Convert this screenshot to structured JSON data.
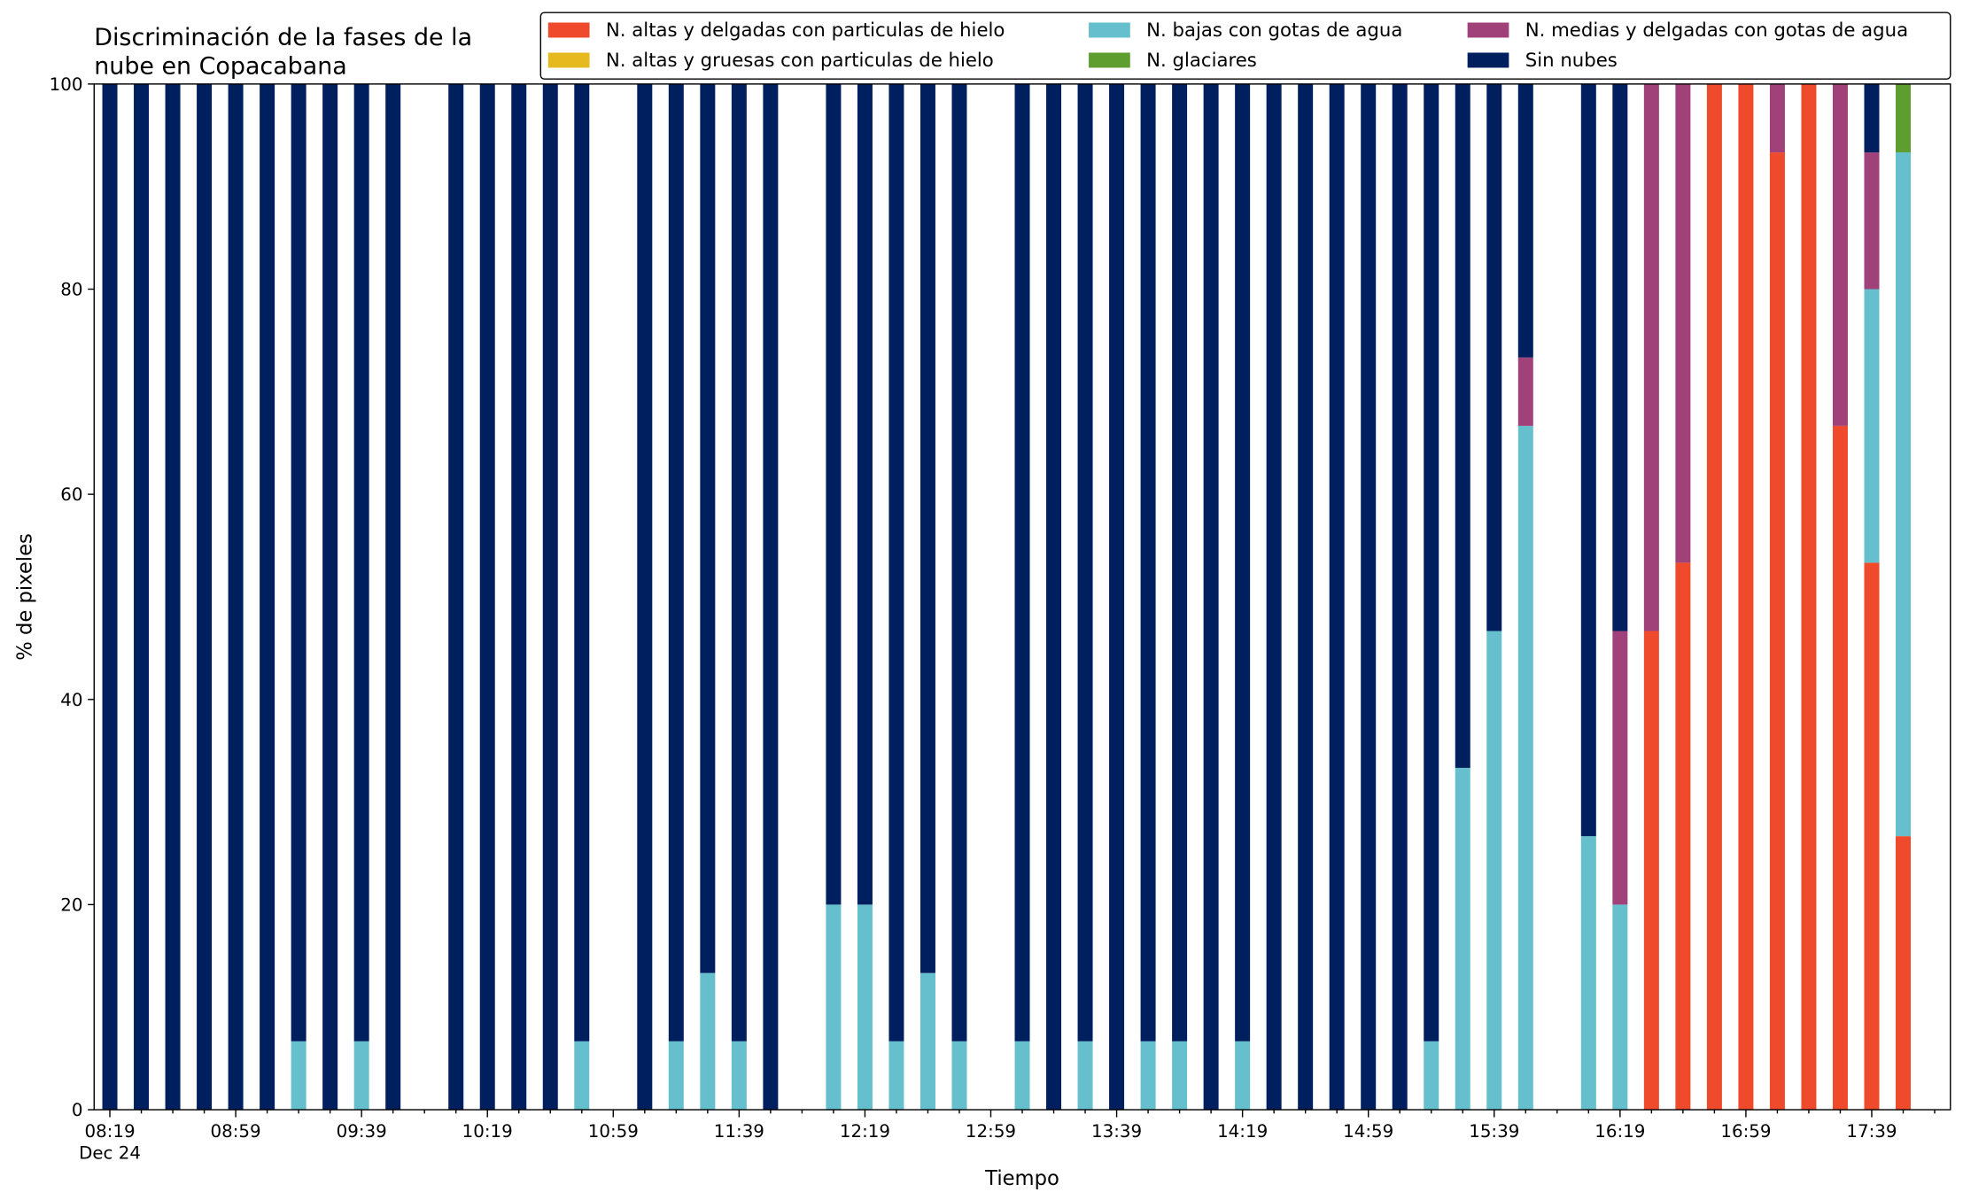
{
  "chart_data": {
    "type": "stacked_bar",
    "title": [
      "Discriminación de la fases de la",
      "nube en Copacabana"
    ],
    "x_label": "Tiempo",
    "y_label": "% de pixeles",
    "x_date": "Dec 24",
    "x": [
      "08:19",
      "08:29",
      "08:39",
      "08:49",
      "08:59",
      "09:09",
      "09:19",
      "09:29",
      "09:39",
      "09:49",
      "10:09",
      "10:19",
      "10:29",
      "10:39",
      "10:49",
      "11:09",
      "11:19",
      "11:29",
      "11:39",
      "11:49",
      "12:09",
      "12:19",
      "12:29",
      "12:39",
      "12:49",
      "13:09",
      "13:19",
      "13:29",
      "13:39",
      "13:49",
      "13:59",
      "14:09",
      "14:19",
      "14:29",
      "14:39",
      "14:49",
      "14:59",
      "15:09",
      "15:19",
      "15:29",
      "15:39",
      "15:49",
      "16:09",
      "16:19",
      "16:29",
      "16:39",
      "16:49",
      "16:59",
      "17:09",
      "17:19",
      "17:29",
      "17:39",
      "17:49"
    ],
    "series": [
      {
        "name": "N. altas y delgadas con particulas de hielo",
        "color": "#ee4a2b",
        "values": [
          0,
          0,
          0,
          0,
          0,
          0,
          0,
          0,
          0,
          0,
          0,
          0,
          0,
          0,
          0,
          0,
          0,
          0,
          0,
          0,
          0,
          0,
          0,
          0,
          0,
          0,
          0,
          0,
          0,
          0,
          0,
          0,
          0,
          0,
          0,
          0,
          0,
          0,
          0,
          0,
          0,
          0,
          0,
          0,
          46.67,
          53.33,
          100,
          100,
          93.33,
          100,
          66.67,
          53.33,
          26.67
        ]
      },
      {
        "name": "N. altas y gruesas con particulas de hielo",
        "color": "#e6b91e",
        "values": [
          0,
          0,
          0,
          0,
          0,
          0,
          0,
          0,
          0,
          0,
          0,
          0,
          0,
          0,
          0,
          0,
          0,
          0,
          0,
          0,
          0,
          0,
          0,
          0,
          0,
          0,
          0,
          0,
          0,
          0,
          0,
          0,
          0,
          0,
          0,
          0,
          0,
          0,
          0,
          0,
          0,
          0,
          0,
          0,
          0,
          0,
          0,
          0,
          0,
          0,
          0,
          0,
          0
        ]
      },
      {
        "name": "N. bajas con gotas de agua",
        "color": "#65bfcc",
        "values": [
          0,
          0,
          0,
          0,
          0,
          0,
          6.67,
          0,
          6.67,
          0,
          0,
          0,
          0,
          0,
          6.67,
          0,
          6.67,
          13.33,
          6.67,
          0,
          20,
          20,
          6.67,
          13.33,
          6.67,
          6.67,
          0,
          6.67,
          0,
          6.67,
          6.67,
          0,
          6.67,
          0,
          0,
          0,
          0,
          0,
          6.67,
          33.33,
          46.67,
          66.67,
          26.67,
          20,
          0,
          0,
          0,
          0,
          0,
          0,
          0,
          26.67,
          66.67
        ]
      },
      {
        "name": "N. glaciares",
        "color": "#5e9e2f",
        "values": [
          0,
          0,
          0,
          0,
          0,
          0,
          0,
          0,
          0,
          0,
          0,
          0,
          0,
          0,
          0,
          0,
          0,
          0,
          0,
          0,
          0,
          0,
          0,
          0,
          0,
          0,
          0,
          0,
          0,
          0,
          0,
          0,
          0,
          0,
          0,
          0,
          0,
          0,
          0,
          0,
          0,
          0,
          0,
          0,
          0,
          0,
          0,
          0,
          0,
          0,
          0,
          0,
          6.67
        ]
      },
      {
        "name": "N. medias y delgadas con gotas de agua",
        "color": "#a1417a",
        "values": [
          0,
          0,
          0,
          0,
          0,
          0,
          0,
          0,
          0,
          0,
          0,
          0,
          0,
          0,
          0,
          0,
          0,
          0,
          0,
          0,
          0,
          0,
          0,
          0,
          0,
          0,
          0,
          0,
          0,
          0,
          0,
          0,
          0,
          0,
          0,
          0,
          0,
          0,
          0,
          0,
          0,
          6.67,
          0,
          26.67,
          53.33,
          46.67,
          0,
          0,
          6.67,
          0,
          33.33,
          13.33,
          0
        ]
      },
      {
        "name": "Sin nubes",
        "color": "#001f5f",
        "values": [
          100,
          100,
          100,
          100,
          100,
          100,
          93.33,
          100,
          93.33,
          100,
          100,
          100,
          100,
          100,
          93.33,
          100,
          93.33,
          86.67,
          93.33,
          100,
          80,
          80,
          93.33,
          86.67,
          93.33,
          93.33,
          100,
          93.33,
          100,
          93.33,
          93.33,
          100,
          93.33,
          100,
          100,
          100,
          100,
          100,
          93.33,
          66.67,
          53.33,
          26.67,
          73.33,
          53.33,
          0,
          0,
          0,
          0,
          0,
          0,
          0,
          6.67,
          0
        ]
      }
    ],
    "xlim": [
      "08:14",
      "18:04"
    ],
    "xticks": [
      "08:19",
      "08:59",
      "09:39",
      "10:19",
      "10:59",
      "11:39",
      "12:19",
      "12:59",
      "13:39",
      "14:19",
      "14:59",
      "15:39",
      "16:19",
      "16:59",
      "17:39"
    ],
    "xminorticks": [
      "08:29",
      "08:39",
      "08:49",
      "09:09",
      "09:19",
      "09:29",
      "09:49",
      "09:59",
      "10:09",
      "10:29",
      "10:39",
      "10:49",
      "11:09",
      "11:19",
      "11:29",
      "11:49",
      "11:59",
      "12:09",
      "12:29",
      "12:39",
      "12:49",
      "13:09",
      "13:19",
      "13:29",
      "13:49",
      "13:59",
      "14:09",
      "14:29",
      "14:39",
      "14:49",
      "15:09",
      "15:19",
      "15:29",
      "15:49",
      "15:59",
      "16:09",
      "16:29",
      "16:39",
      "16:49",
      "17:09",
      "17:19",
      "17:29",
      "17:49",
      "17:59"
    ],
    "ylim": [
      0,
      100
    ],
    "yticks": [
      0,
      20,
      40,
      60,
      80,
      100
    ],
    "legend": "top-right"
  }
}
